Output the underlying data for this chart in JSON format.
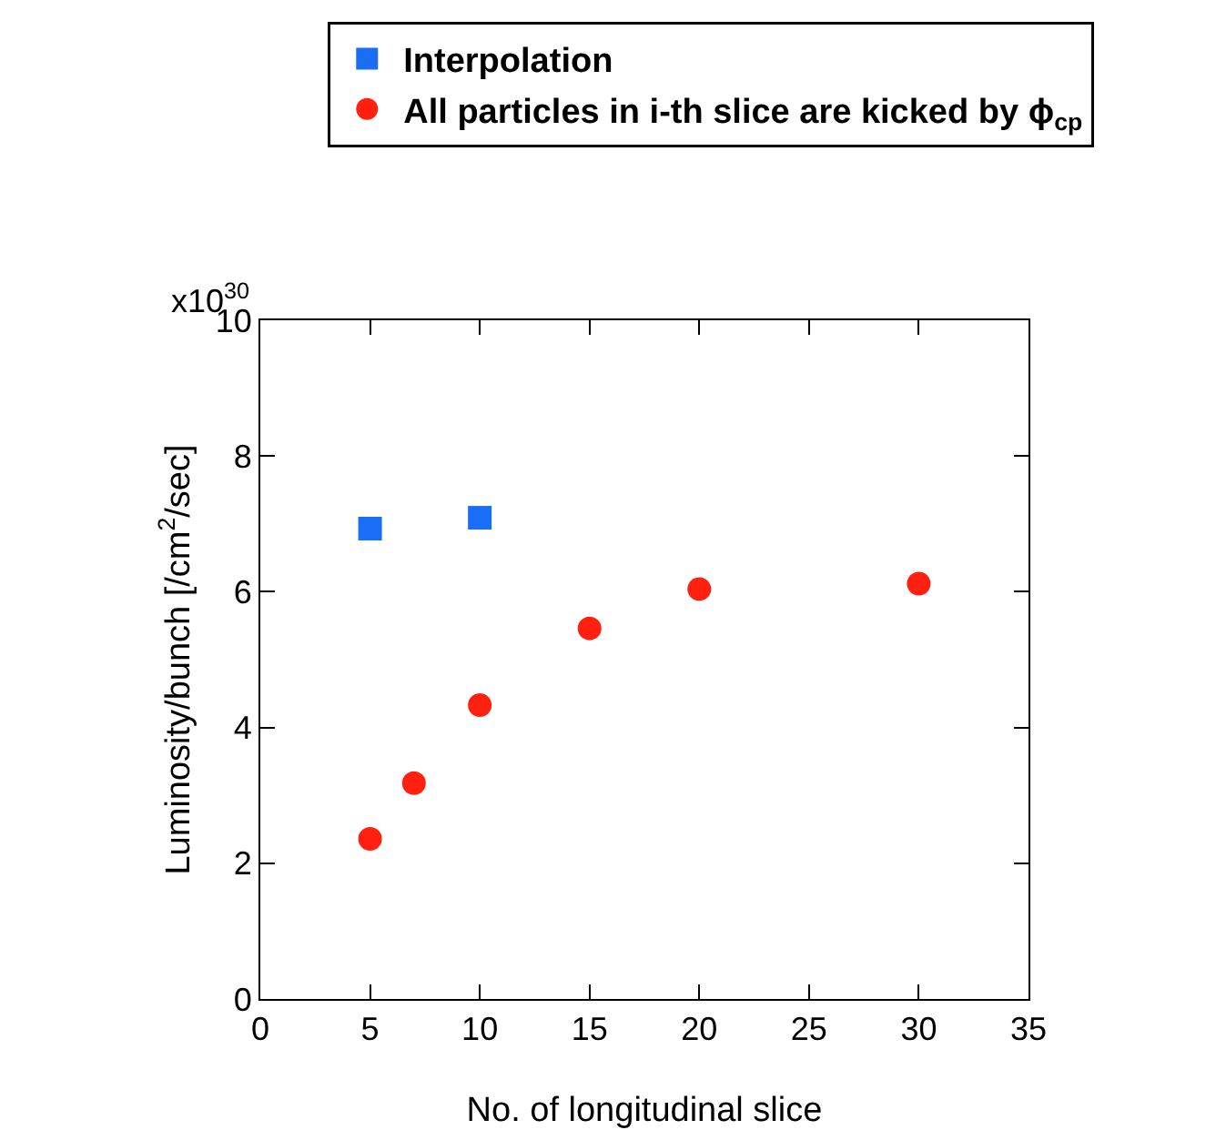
{
  "chart_data": {
    "type": "scatter",
    "xlabel": "No. of longitudinal slice",
    "ylabel": "Luminosity/bunch [/cm$^{2}$/sec]",
    "annotations": [
      "x10$^{30}$"
    ],
    "series": [
      {
        "name": "Interpolation",
        "color": "#1a6ef5",
        "marker": "square",
        "x": [
          5,
          10
        ],
        "values": [
          6.93,
          7.09
        ]
      },
      {
        "name": "All particles in i-th slice are kicked by ϕ$_{cp}$",
        "color": "#ff2010",
        "marker": "circle",
        "x": [
          5,
          7,
          10,
          15,
          20,
          30
        ],
        "values": [
          2.36,
          3.18,
          4.33,
          5.46,
          6.04,
          6.12
        ]
      }
    ],
    "xlim": [
      0,
      35
    ],
    "xticks": [
      0,
      5,
      10,
      15,
      20,
      25,
      30,
      35
    ],
    "ylim": [
      0,
      10
    ],
    "yticks": [
      0,
      2,
      4,
      6,
      8,
      10
    ],
    "grid": false,
    "legend": "top right"
  }
}
